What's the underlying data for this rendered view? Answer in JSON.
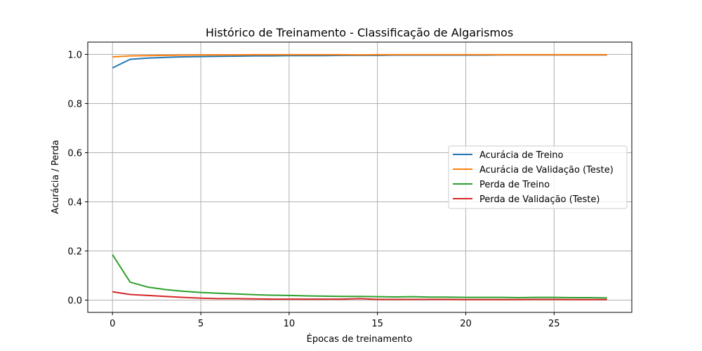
{
  "chart_data": {
    "type": "line",
    "title": "Histórico de Treinamento - Classificação de Algarismos",
    "xlabel": "Épocas de treinamento",
    "ylabel": "Acurácia / Perda",
    "xlim": [
      -1.4,
      29.4
    ],
    "ylim": [
      -0.05,
      1.05
    ],
    "xticks": [
      0,
      5,
      10,
      15,
      20,
      25
    ],
    "yticks": [
      0.0,
      0.2,
      0.4,
      0.6,
      0.8,
      1.0
    ],
    "xtick_labels": [
      "0",
      "5",
      "10",
      "15",
      "20",
      "25"
    ],
    "ytick_labels": [
      "0.0",
      "0.2",
      "0.4",
      "0.6",
      "0.8",
      "1.0"
    ],
    "grid": true,
    "legend_position": "center-right",
    "x": [
      0,
      1,
      2,
      3,
      4,
      5,
      6,
      7,
      8,
      9,
      10,
      11,
      12,
      13,
      14,
      15,
      16,
      17,
      18,
      19,
      20,
      21,
      22,
      23,
      24,
      25,
      26,
      27,
      28
    ],
    "series": [
      {
        "name": "Acurácia de Treino",
        "color": "#1f77b4",
        "values": [
          0.945,
          0.98,
          0.985,
          0.988,
          0.99,
          0.991,
          0.992,
          0.993,
          0.994,
          0.994,
          0.995,
          0.995,
          0.995,
          0.996,
          0.996,
          0.996,
          0.997,
          0.997,
          0.997,
          0.997,
          0.997,
          0.997,
          0.998,
          0.998,
          0.998,
          0.998,
          0.998,
          0.998,
          0.998
        ]
      },
      {
        "name": "Acurácia de Validação (Teste)",
        "color": "#ff7f0e",
        "values": [
          0.99,
          0.994,
          0.995,
          0.996,
          0.997,
          0.998,
          0.998,
          0.998,
          0.999,
          0.999,
          0.999,
          0.999,
          0.999,
          0.999,
          0.998,
          0.999,
          0.999,
          0.999,
          0.999,
          0.999,
          0.999,
          0.999,
          0.999,
          0.999,
          0.999,
          0.999,
          0.999,
          0.999,
          0.999
        ]
      },
      {
        "name": "Perda de Treino",
        "color": "#2ca02c",
        "values": [
          0.185,
          0.073,
          0.053,
          0.043,
          0.036,
          0.031,
          0.028,
          0.025,
          0.022,
          0.02,
          0.019,
          0.017,
          0.016,
          0.015,
          0.015,
          0.014,
          0.013,
          0.014,
          0.012,
          0.012,
          0.011,
          0.011,
          0.011,
          0.01,
          0.011,
          0.011,
          0.01,
          0.01,
          0.009
        ]
      },
      {
        "name": "Perda de Validação (Teste)",
        "color": "#d62728",
        "values": [
          0.034,
          0.023,
          0.019,
          0.015,
          0.011,
          0.008,
          0.006,
          0.006,
          0.005,
          0.004,
          0.004,
          0.004,
          0.004,
          0.004,
          0.006,
          0.003,
          0.003,
          0.003,
          0.003,
          0.003,
          0.002,
          0.002,
          0.002,
          0.002,
          0.003,
          0.003,
          0.002,
          0.002,
          0.002
        ]
      }
    ]
  }
}
